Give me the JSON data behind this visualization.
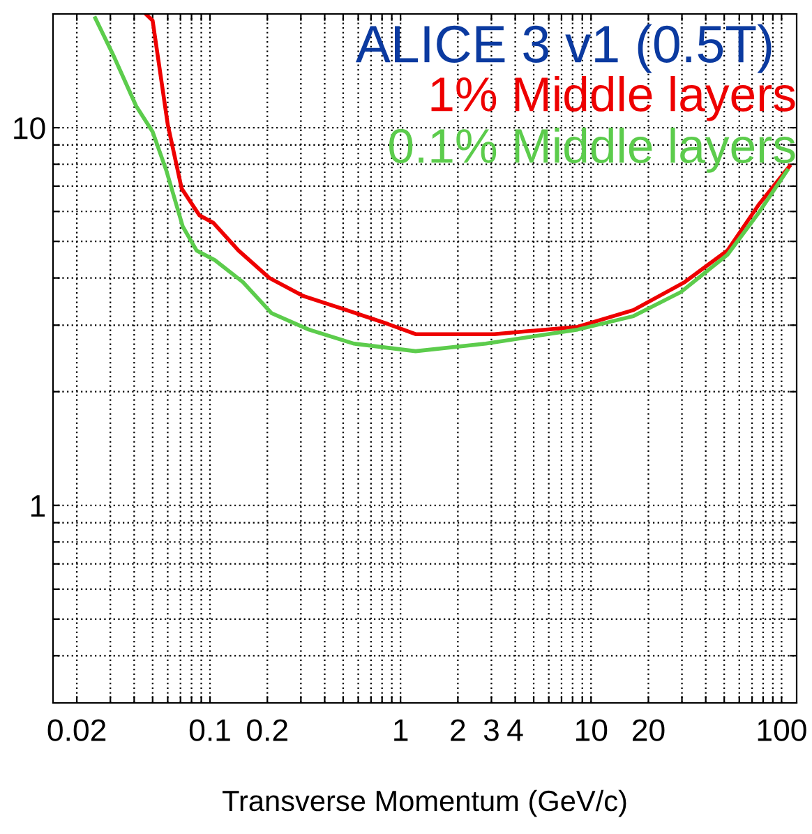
{
  "chart_data": {
    "type": "line",
    "title": "ALICE 3 v1 (0.5T)",
    "xlabel": "Transverse Momentum (GeV/c)",
    "log": "xy",
    "grid": true,
    "legend": "top right",
    "line_style": "solid",
    "marker": "none",
    "xlim": [
      0.015,
      120
    ],
    "ylim": [
      0.3,
      20
    ],
    "xticks": [
      {
        "value": 0.02,
        "label": "0.02"
      },
      {
        "value": 0.03,
        "label": null
      },
      {
        "value": 0.04,
        "label": null
      },
      {
        "value": 0.05,
        "label": null
      },
      {
        "value": 0.06,
        "label": null
      },
      {
        "value": 0.07,
        "label": null
      },
      {
        "value": 0.08,
        "label": null
      },
      {
        "value": 0.09,
        "label": null
      },
      {
        "value": 0.1,
        "label": "0.1"
      },
      {
        "value": 0.2,
        "label": "0.2"
      },
      {
        "value": 0.3,
        "label": null
      },
      {
        "value": 0.4,
        "label": null
      },
      {
        "value": 0.5,
        "label": null
      },
      {
        "value": 0.6,
        "label": null
      },
      {
        "value": 0.7,
        "label": null
      },
      {
        "value": 0.8,
        "label": null
      },
      {
        "value": 0.9,
        "label": null
      },
      1,
      2,
      3,
      4,
      {
        "value": 5,
        "label": null
      },
      {
        "value": 6,
        "label": null
      },
      {
        "value": 7,
        "label": null
      },
      {
        "value": 8,
        "label": null
      },
      {
        "value": 9,
        "label": null
      },
      10,
      20,
      {
        "value": 30,
        "label": null
      },
      {
        "value": 40,
        "label": null
      },
      {
        "value": 50,
        "label": null
      },
      {
        "value": 60,
        "label": null
      },
      {
        "value": 70,
        "label": null
      },
      {
        "value": 80,
        "label": null
      },
      {
        "value": 90,
        "label": null
      },
      100
    ],
    "yticks": [
      {
        "value": 0.3,
        "label": null
      },
      {
        "value": 0.4,
        "label": null
      },
      {
        "value": 0.5,
        "label": null
      },
      {
        "value": 0.6,
        "label": null
      },
      {
        "value": 0.7,
        "label": null
      },
      {
        "value": 0.8,
        "label": null
      },
      {
        "value": 0.9,
        "label": null
      },
      1,
      {
        "value": 2,
        "label": null
      },
      {
        "value": 3,
        "label": null
      },
      {
        "value": 4,
        "label": null
      },
      {
        "value": 5,
        "label": null
      },
      {
        "value": 6,
        "label": null
      },
      {
        "value": 7,
        "label": null
      },
      {
        "value": 8,
        "label": null
      },
      {
        "value": 9,
        "label": null
      },
      10,
      {
        "value": 20,
        "label": null
      }
    ],
    "series": [
      {
        "name": "1% Middle layers",
        "color": "#ee0000",
        "x": [
          0.046,
          0.05,
          0.06,
          0.071,
          0.088,
          0.104,
          0.141,
          0.205,
          0.31,
          0.52,
          0.86,
          1.2,
          3.1,
          8.5,
          16.7,
          31,
          52,
          76,
          110
        ],
        "values": [
          20,
          19.2,
          10.2,
          6.9,
          5.86,
          5.6,
          4.73,
          4.0,
          3.58,
          3.29,
          3.02,
          2.84,
          2.84,
          2.97,
          3.29,
          3.9,
          4.73,
          6.26,
          7.9
        ]
      },
      {
        "name": "0.1% Middle layers",
        "color": "#5ccc4c",
        "x": [
          0.025,
          0.031,
          0.041,
          0.05,
          0.059,
          0.072,
          0.085,
          0.106,
          0.149,
          0.21,
          0.33,
          0.57,
          1.2,
          2.8,
          8.5,
          16.7,
          29.6,
          52,
          76,
          107
        ],
        "values": [
          19.5,
          15.6,
          11.4,
          9.75,
          7.7,
          5.47,
          4.73,
          4.46,
          3.9,
          3.23,
          2.92,
          2.68,
          2.56,
          2.68,
          2.92,
          3.17,
          3.67,
          4.61,
          5.96,
          7.7
        ]
      }
    ]
  }
}
